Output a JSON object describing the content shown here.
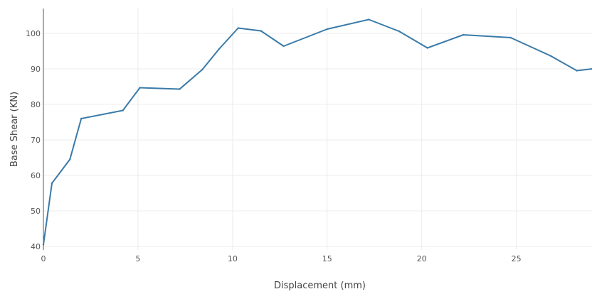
{
  "chart_data": {
    "type": "line",
    "title": "",
    "xlabel": "Displacement (mm)",
    "ylabel": "Base Shear (KN)",
    "xlim": [
      0,
      29
    ],
    "ylim": [
      39,
      107
    ],
    "xticks": [
      0,
      5,
      10,
      15,
      20,
      25
    ],
    "yticks": [
      40,
      50,
      60,
      70,
      80,
      90,
      100
    ],
    "grid": true,
    "legend": "none",
    "series": [
      {
        "color": "#3a7aa8",
        "x": [
          0.0,
          0.45,
          1.4,
          2.0,
          4.2,
          5.1,
          7.2,
          8.4,
          9.3,
          10.3,
          11.5,
          12.7,
          15.0,
          17.2,
          18.8,
          20.3,
          22.2,
          24.7,
          26.8,
          28.2,
          29.0
        ],
        "y": [
          40.5,
          57.8,
          64.5,
          76.0,
          78.3,
          84.7,
          84.3,
          89.8,
          95.7,
          101.5,
          100.7,
          96.4,
          101.2,
          103.9,
          100.6,
          95.9,
          99.6,
          98.8,
          93.7,
          89.5,
          90.0
        ]
      }
    ]
  }
}
